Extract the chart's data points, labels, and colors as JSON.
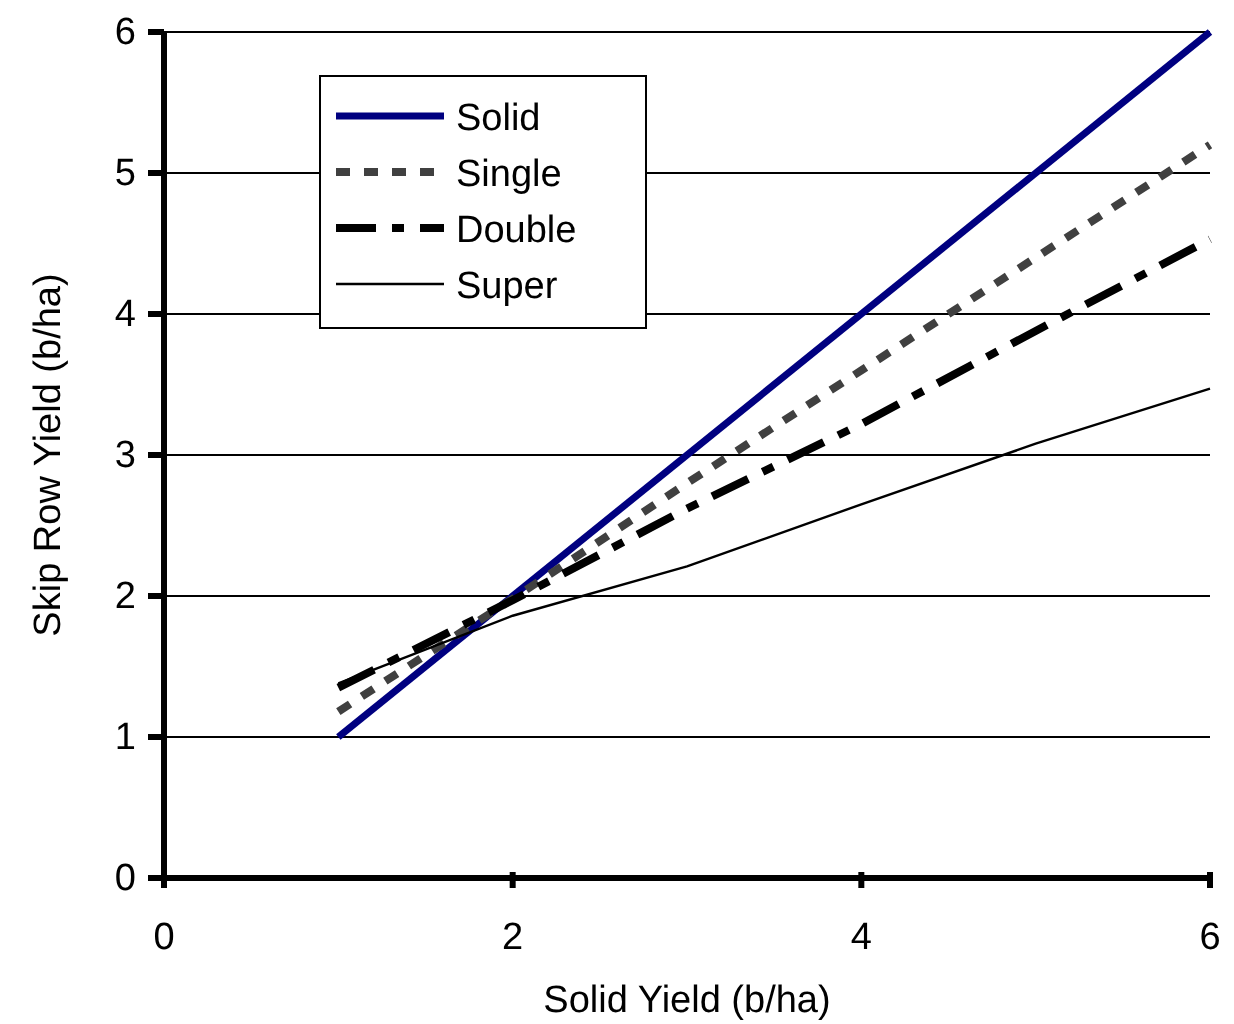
{
  "chart_data": {
    "type": "line",
    "xlabel": "Solid Yield (b/ha)",
    "ylabel": "Skip Row Yield (b/ha)",
    "xlim": [
      0,
      6
    ],
    "ylim": [
      0,
      6
    ],
    "xticks": [
      0,
      2,
      4,
      6
    ],
    "yticks": [
      0,
      1,
      2,
      3,
      4,
      5,
      6
    ],
    "grid": "y",
    "legend": "top left",
    "marker": "none",
    "series": [
      {
        "name": "Solid",
        "color": "#000080",
        "x": [
          1,
          6
        ],
        "values": [
          1,
          6
        ],
        "line_style": "solid"
      },
      {
        "name": "Single",
        "color": "#404040",
        "x": [
          1,
          2,
          3,
          4,
          5,
          6
        ],
        "values": [
          1.18,
          1.98,
          2.8,
          3.6,
          4.4,
          5.2
        ],
        "line_style": "dotted"
      },
      {
        "name": "Double",
        "color": "#000000",
        "x": [
          1,
          2,
          3,
          4,
          5,
          6
        ],
        "values": [
          1.35,
          1.97,
          2.62,
          3.22,
          3.88,
          4.53
        ],
        "line_style": "dashed"
      },
      {
        "name": "Super",
        "color": "#000000",
        "x": [
          1,
          2,
          3,
          4,
          5,
          6
        ],
        "values": [
          1.38,
          1.86,
          2.21,
          2.65,
          3.08,
          3.47
        ],
        "line_style": "solid"
      }
    ]
  }
}
